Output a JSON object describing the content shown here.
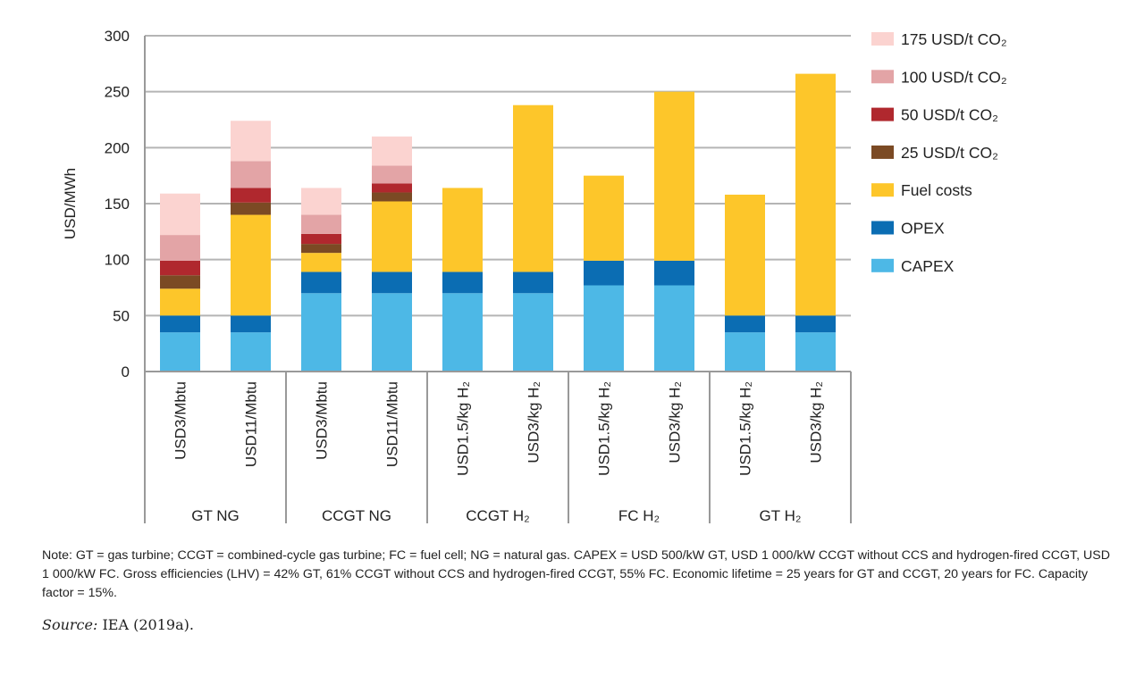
{
  "chart_data": {
    "type": "bar",
    "stacked": true,
    "ylabel": "USD/MWh",
    "ylim": [
      0,
      300
    ],
    "yticks": [
      0,
      50,
      100,
      150,
      200,
      250,
      300
    ],
    "grid": true,
    "legend_position": "right",
    "groups": [
      {
        "label": "GT NG",
        "categories": [
          "USD3/Mbtu",
          "USD11/Mbtu"
        ]
      },
      {
        "label": "CCGT NG",
        "categories": [
          "USD3/Mbtu",
          "USD11/Mbtu"
        ]
      },
      {
        "label": "CCGT H₂",
        "categories": [
          "USD1.5/kg H₂",
          "USD3/kg H₂"
        ]
      },
      {
        "label": "FC H₂",
        "categories": [
          "USD1.5/kg H₂",
          "USD3/kg H₂"
        ]
      },
      {
        "label": "GT H₂",
        "categories": [
          "USD1.5/kg H₂",
          "USD3/kg H₂"
        ]
      }
    ],
    "series": [
      {
        "name": "CAPEX",
        "color": "#4db8e6",
        "values": [
          35,
          35,
          70,
          70,
          70,
          70,
          77,
          77,
          35,
          35
        ]
      },
      {
        "name": "OPEX",
        "color": "#0b6db3",
        "values": [
          15,
          15,
          19,
          19,
          19,
          19,
          22,
          22,
          15,
          15
        ]
      },
      {
        "name": "Fuel costs",
        "color": "#fdc62a",
        "values": [
          24,
          90,
          17,
          63,
          75,
          149,
          76,
          151,
          108,
          216
        ]
      },
      {
        "name": "25 USD/t CO₂",
        "color": "#7b4a24",
        "values": [
          12,
          11,
          8,
          8,
          0,
          0,
          0,
          0,
          0,
          0
        ]
      },
      {
        "name": "50 USD/t CO₂",
        "color": "#b0282e",
        "values": [
          13,
          13,
          9,
          8,
          0,
          0,
          0,
          0,
          0,
          0
        ]
      },
      {
        "name": "100 USD/t CO₂",
        "color": "#e3a4a6",
        "values": [
          23,
          24,
          17,
          16,
          0,
          0,
          0,
          0,
          0,
          0
        ]
      },
      {
        "name": "175 USD/t CO₂",
        "color": "#fbd3d0",
        "values": [
          37,
          36,
          24,
          26,
          0,
          0,
          0,
          0,
          0,
          0
        ]
      }
    ]
  },
  "note": "Note: GT = gas turbine; CCGT = combined-cycle gas turbine; FC = fuel cell; NG = natural gas. CAPEX = USD 500/kW GT, USD 1 000/kW CCGT without CCS and hydrogen-fired CCGT, USD 1 000/kW FC. Gross efficiencies (LHV) = 42% GT, 61% CCGT without CCS and hydrogen-fired CCGT, 55% FC. Economic lifetime = 25 years for GT and CCGT, 20 years for FC. Capacity factor = 15%.",
  "source_label": "Source:",
  "source_text": " IEA (2019a)."
}
